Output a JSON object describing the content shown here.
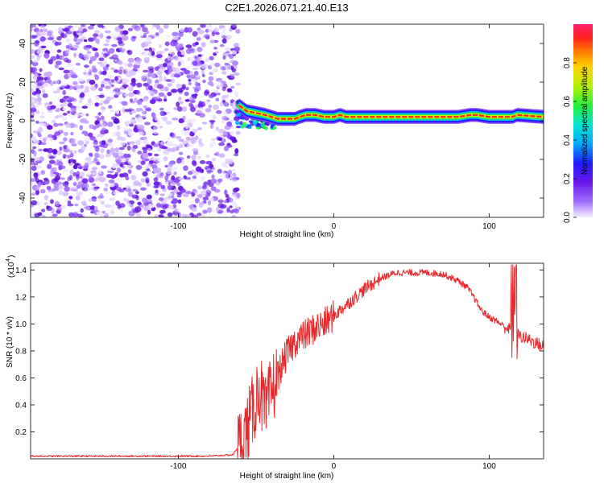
{
  "title": "C2E1.2026.071.21.40.E13",
  "chart_data": [
    {
      "type": "heatmap",
      "xlabel": "Height of straight line (km)",
      "ylabel": "Frequency (Hz)",
      "xlim": [
        -195,
        135
      ],
      "ylim": [
        -50,
        50
      ],
      "xticks": [
        -100,
        0,
        100
      ],
      "yticks": [
        -40,
        -20,
        0,
        20,
        40
      ],
      "noise_region_x": [
        -195,
        -61
      ],
      "signal_line": {
        "x": [
          -61,
          -56,
          -50,
          -44,
          -40,
          -36,
          -30,
          -25,
          -22,
          -18,
          -12,
          -6,
          0,
          4,
          8,
          20,
          40,
          60,
          80,
          88,
          92,
          100,
          110,
          115,
          118,
          135
        ],
        "y": [
          8,
          5,
          4,
          3,
          2,
          1,
          1,
          1,
          2,
          3,
          3,
          2,
          2,
          3,
          2,
          2,
          2,
          2,
          2,
          3,
          3,
          2,
          2,
          2,
          3,
          2
        ]
      },
      "colorbar": {
        "label": "Normalized spectral amplitude",
        "range": [
          0.0,
          1.0
        ],
        "ticks": [
          0.0,
          0.2,
          0.4,
          0.6,
          0.8
        ]
      }
    },
    {
      "type": "line",
      "xlabel": "Height of straight line (km)",
      "ylabel": "SNR (10 * v/v)",
      "yscale_label": "(x10",
      "yscale_exp": "4",
      "xlim": [
        -195,
        135
      ],
      "ylim": [
        0,
        1.45
      ],
      "xticks": [
        -100,
        0,
        100
      ],
      "yticks": [
        0.2,
        0.4,
        0.6,
        0.8,
        1.0,
        1.2,
        1.4
      ],
      "color": "#e8282b",
      "series": [
        {
          "x": [
            -195,
            -170,
            -140,
            -110,
            -80,
            -65,
            -58,
            -52,
            -48,
            -44,
            -40,
            -36,
            -30,
            -24,
            -18,
            -12,
            -6,
            0,
            6,
            12,
            20,
            30,
            40,
            50,
            60,
            70,
            80,
            86,
            90,
            95,
            100,
            105,
            110,
            114,
            118,
            122,
            128,
            135
          ],
          "y": [
            0.02,
            0.02,
            0.02,
            0.02,
            0.02,
            0.03,
            0.15,
            0.35,
            0.55,
            0.32,
            0.5,
            0.62,
            0.78,
            0.88,
            0.92,
            0.97,
            1.0,
            1.06,
            1.12,
            1.18,
            1.26,
            1.34,
            1.38,
            1.38,
            1.38,
            1.37,
            1.32,
            1.27,
            1.2,
            1.1,
            1.05,
            1.02,
            0.98,
            0.95,
            0.92,
            0.9,
            0.87,
            0.83
          ]
        }
      ]
    }
  ]
}
